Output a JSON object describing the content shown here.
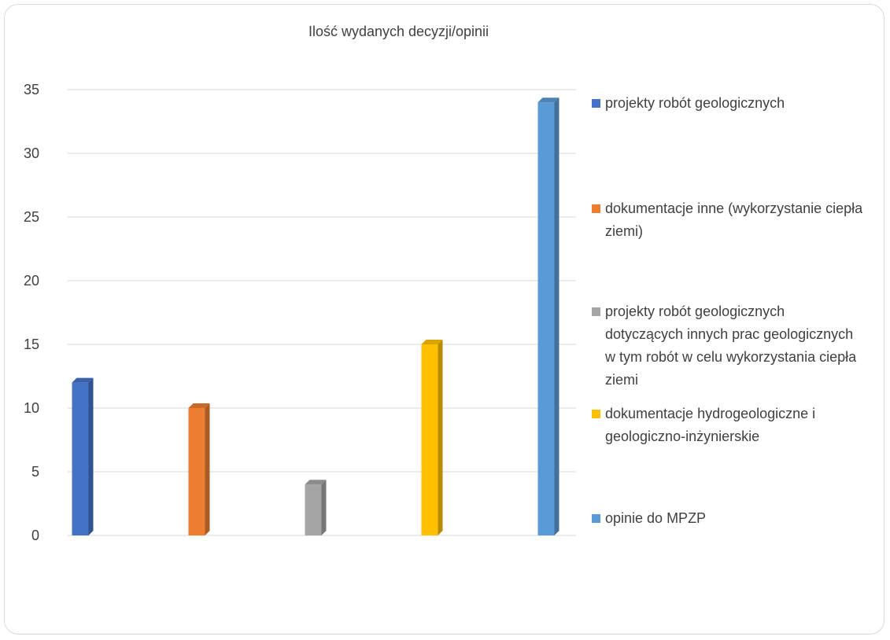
{
  "chart_data": {
    "type": "bar",
    "title": "Ilość wydanych decyzji/opinii",
    "xlabel": "",
    "ylabel": "",
    "ylim": [
      0,
      35
    ],
    "yticks": [
      0,
      5,
      10,
      15,
      20,
      25,
      30,
      35
    ],
    "grid": true,
    "legend_position": "right",
    "series": [
      {
        "name": "projekty robót geologicznych",
        "value": 12,
        "color": "#4472C4"
      },
      {
        "name": "dokumentacje inne (wykorzystanie ciepła ziemi)",
        "value": 10,
        "color": "#ED7D31"
      },
      {
        "name": "projekty robót geologicznych dotyczących innych prac geologicznych w tym robót w celu wykorzystania ciepła ziemi",
        "value": 4,
        "color": "#A5A5A5"
      },
      {
        "name": "dokumentacje hydrogeologiczne i geologiczno-inżynierskie",
        "value": 15,
        "color": "#FFC000"
      },
      {
        "name": "opinie do MPZP",
        "value": 34,
        "color": "#5B9BD5"
      }
    ]
  }
}
